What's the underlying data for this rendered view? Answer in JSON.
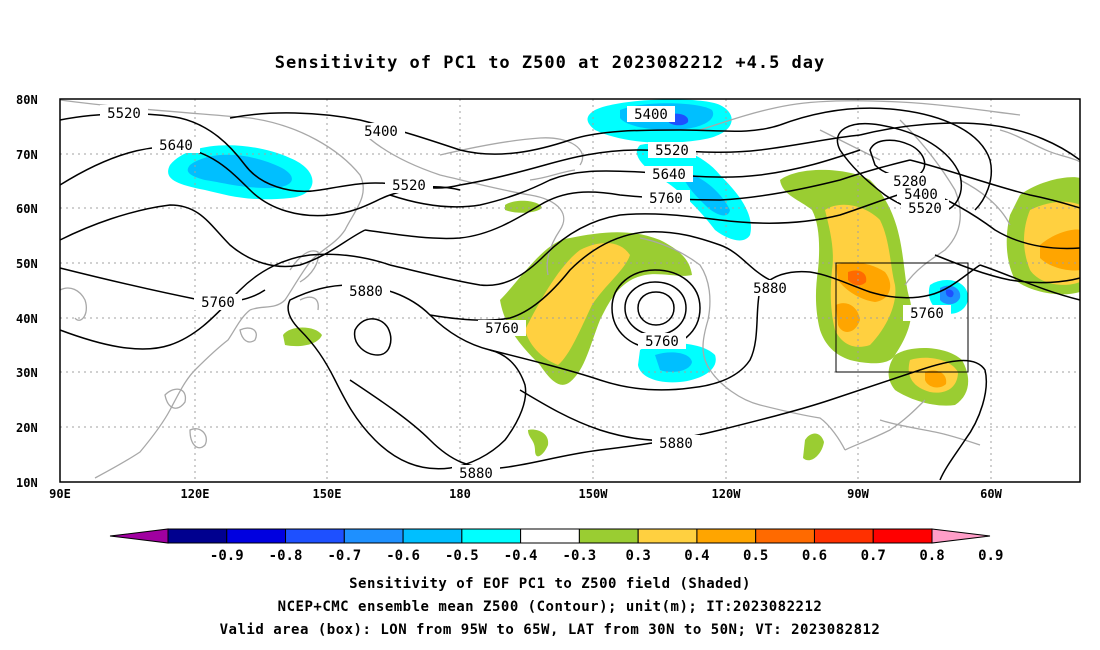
{
  "title": "Sensitivity of PC1 to Z500 at 2023082212 +4.5 day",
  "map": {
    "lon_ticks": [
      "90E",
      "120E",
      "150E",
      "180",
      "150W",
      "120W",
      "90W",
      "60W"
    ],
    "lat_ticks": [
      "80N",
      "70N",
      "60N",
      "50N",
      "40N",
      "30N",
      "20N",
      "10N"
    ],
    "valid_box": {
      "lon_from": "95W",
      "lon_to": "65W",
      "lat_from": "30N",
      "lat_to": "50N"
    },
    "contour_labels": [
      "5520",
      "5400",
      "5640",
      "5520",
      "5400",
      "5520",
      "5640",
      "5760",
      "5280",
      "5400",
      "5520",
      "5760",
      "5880",
      "5760",
      "5760",
      "5880",
      "5760",
      "5880",
      "5880"
    ]
  },
  "colorbar": {
    "colors": [
      "#a000a0",
      "#00008f",
      "#0000e0",
      "#1e50ff",
      "#1e90ff",
      "#00bfff",
      "#00ffff",
      "#ffffff",
      "#9acd32",
      "#ffd040",
      "#ffa500",
      "#ff6a00",
      "#ff3000",
      "#ff0000",
      "#ff9ec8"
    ],
    "labels": [
      "-0.9",
      "-0.8",
      "-0.7",
      "-0.6",
      "-0.5",
      "-0.4",
      "-0.3",
      "0.3",
      "0.4",
      "0.5",
      "0.6",
      "0.7",
      "0.8",
      "0.9"
    ]
  },
  "captions": [
    "Sensitivity of EOF PC1 to Z500 field (Shaded)",
    "NCEP+CMC ensemble mean Z500 (Contour); unit(m); IT:2023082212",
    "Valid area (box): LON from 95W to 65W, LAT from 30N to 50N; VT: 2023082812"
  ]
}
